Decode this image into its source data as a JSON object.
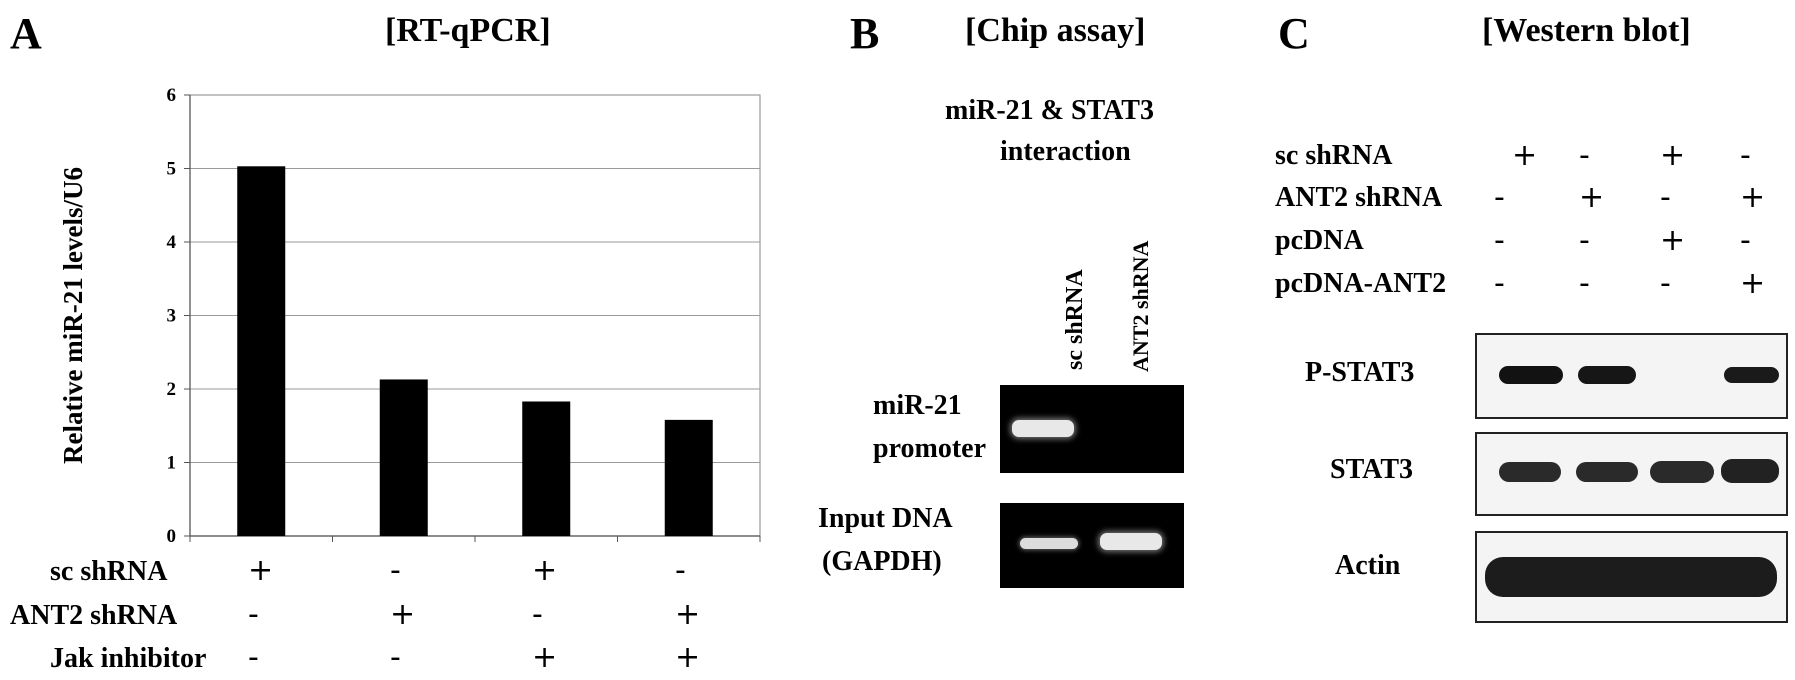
{
  "panel_a": {
    "letter": "A",
    "title": "[RT-qPCR]",
    "conditions": [
      {
        "label": "sc shRNA",
        "signs": [
          "+",
          "-",
          "+",
          "-"
        ]
      },
      {
        "label": "ANT2 shRNA",
        "signs": [
          "-",
          "+",
          "-",
          "+"
        ]
      },
      {
        "label": "Jak inhibitor",
        "signs": [
          "-",
          "-",
          "+",
          "+"
        ]
      }
    ]
  },
  "chart_data": {
    "type": "bar",
    "categories": [
      "1",
      "2",
      "3",
      "4"
    ],
    "values": [
      5.03,
      2.13,
      1.83,
      1.58
    ],
    "title": "",
    "xlabel": "",
    "ylabel": "Relative miR-21 levels/U6",
    "ylim": [
      0,
      6
    ],
    "yticks": [
      0,
      1,
      2,
      3,
      4,
      5,
      6
    ],
    "grid": true,
    "legend": "none",
    "bar_color": "#000000"
  },
  "panel_b": {
    "letter": "B",
    "title": "[Chip assay]",
    "subtitle_line1": "miR-21 & STAT3",
    "subtitle_line2": "interaction",
    "lane_labels": [
      "sc shRNA",
      "ANT2 shRNA"
    ],
    "rows": [
      {
        "label_line1": "miR-21",
        "label_line2": "promoter"
      },
      {
        "label_line1": "Input DNA",
        "label_line2": "(GAPDH)"
      }
    ]
  },
  "panel_c": {
    "letter": "C",
    "title": "[Western blot]",
    "conditions": [
      {
        "label": "sc shRNA",
        "signs": [
          "+",
          "-",
          "+",
          "-"
        ]
      },
      {
        "label": "ANT2 shRNA",
        "signs": [
          "-",
          "+",
          "-",
          "+"
        ]
      },
      {
        "label": "pcDNA",
        "signs": [
          "-",
          "-",
          "+",
          "-"
        ]
      },
      {
        "label": "pcDNA-ANT2",
        "signs": [
          "-",
          "-",
          "-",
          "+"
        ]
      }
    ],
    "blots": [
      {
        "label": "P-STAT3"
      },
      {
        "label": "STAT3"
      },
      {
        "label": "Actin"
      }
    ]
  }
}
